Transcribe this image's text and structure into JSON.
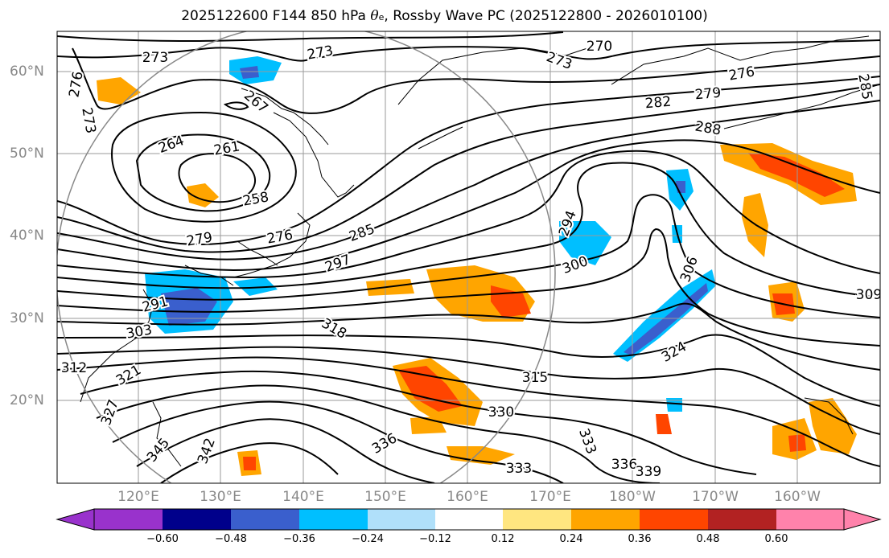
{
  "title": {
    "prefix": "2025122600 F144 850 hPa ",
    "symbol": "θ",
    "subscript": "e",
    "suffix": ", Rossby Wave PC (2025122800 - 2026010100)"
  },
  "lat_labels": [
    "60°N",
    "50°N",
    "40°N",
    "30°N",
    "20°N"
  ],
  "lon_labels": [
    "120°E",
    "130°E",
    "140°E",
    "150°E",
    "160°E",
    "170°E",
    "180°W",
    "170°W",
    "160°W"
  ],
  "colorbar": {
    "ticks": [
      "−0.60",
      "−0.48",
      "−0.36",
      "−0.24",
      "−0.12",
      "0.12",
      "0.24",
      "0.36",
      "0.48",
      "0.60"
    ],
    "colors": [
      "#9932cc",
      "#00008b",
      "#3a5fcd",
      "#00bfff",
      "#b0e0fa",
      "#ffffff",
      "#ffe680",
      "#ffa500",
      "#ff4500",
      "#b22222",
      "#ff82ab"
    ]
  },
  "contour_labels": [
    "273",
    "273",
    "270",
    "276",
    "273",
    "276",
    "285",
    "267",
    "273",
    "264",
    "261",
    "279",
    "282",
    "288",
    "258",
    "279",
    "276",
    "285",
    "297",
    "294",
    "300",
    "306",
    "291",
    "303",
    "318",
    "309",
    "312",
    "324",
    "315",
    "321",
    "327",
    "330",
    "333",
    "336",
    "336",
    "333",
    "339",
    "342",
    "345"
  ]
}
